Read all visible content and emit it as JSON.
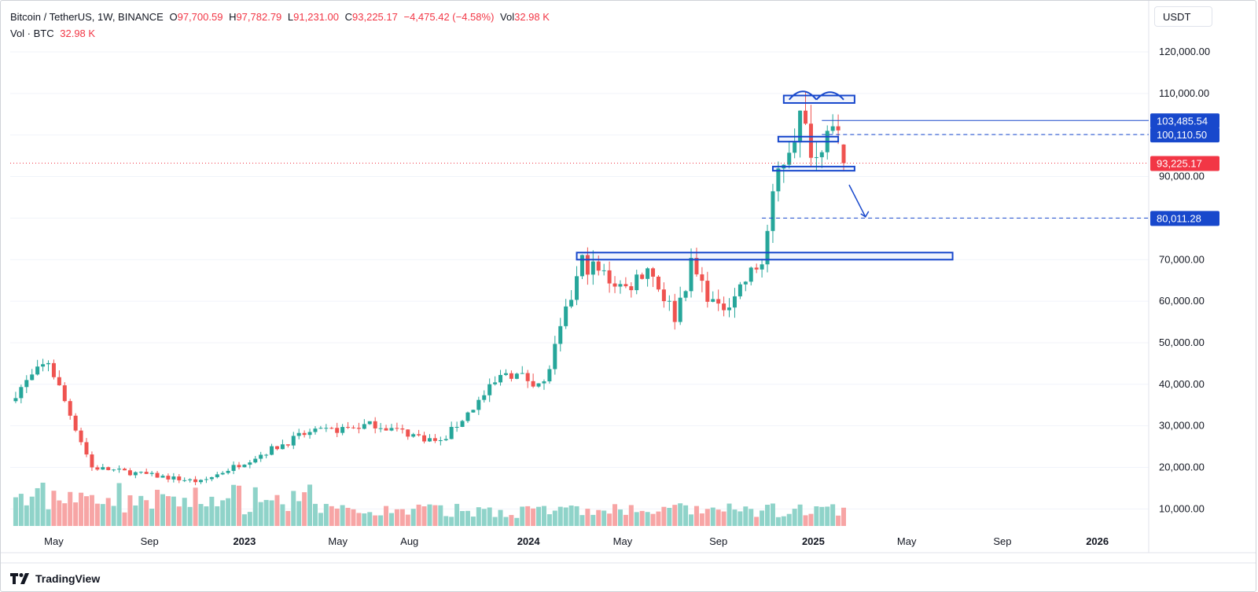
{
  "header": {
    "symbol": "Bitcoin / TetherUS, 1W, BINANCE",
    "open_label": "O",
    "open": "97,700.59",
    "high_label": "H",
    "high": "97,782.79",
    "low_label": "L",
    "low": "91,231.00",
    "close_label": "C",
    "close": "93,225.17",
    "change": "−4,475.42 (−4.58%)",
    "vol_label": "Vol",
    "vol": "32.98 K",
    "vol_row_label": "Vol · BTC",
    "vol_row_value": "32.98 K"
  },
  "price_scale": {
    "unit": "USDT"
  },
  "branding": {
    "name": "TradingView"
  },
  "colors": {
    "up": "#26a69a",
    "down": "#ef5350",
    "up_vol": "#8fd3c9",
    "down_vol": "#f7a5a5",
    "drawing": "#1848cc",
    "last_price": "#f23645"
  },
  "chart_data": {
    "type": "candlestick",
    "timeframe": "1W",
    "y_axis": {
      "range": [
        2500,
        127000
      ],
      "ticks": [
        10000,
        20000,
        30000,
        40000,
        50000,
        60000,
        70000,
        80000,
        90000,
        100000,
        110000,
        120000
      ],
      "tick_labels": [
        "10,000.00",
        "20,000.00",
        "30,000.00",
        "40,000.00",
        "50,000.00",
        "60,000.00",
        "70,000.00",
        "80,000.00",
        "90,000.00",
        "100,000.00",
        "110,000.00",
        "120,000.00"
      ]
    },
    "x_axis": {
      "labels": [
        {
          "text": "May",
          "x": "2022-05-01"
        },
        {
          "text": "Sep",
          "x": "2022-09-01"
        },
        {
          "text": "2023",
          "x": "2023-01-01",
          "bold": true
        },
        {
          "text": "May",
          "x": "2023-05-01"
        },
        {
          "text": "Aug",
          "x": "2023-08-01"
        },
        {
          "text": "2024",
          "x": "2024-01-01",
          "bold": true
        },
        {
          "text": "May",
          "x": "2024-05-01"
        },
        {
          "text": "Sep",
          "x": "2024-09-01"
        },
        {
          "text": "2025",
          "x": "2025-01-01",
          "bold": true
        },
        {
          "text": "May",
          "x": "2025-05-01"
        },
        {
          "text": "Sep",
          "x": "2025-09-01"
        },
        {
          "text": "2026",
          "x": "2026-01-01",
          "bold": true
        }
      ]
    },
    "price_labels": [
      {
        "text": "103,485.54",
        "value": 103485.54,
        "style": "drawing"
      },
      {
        "text": "100,110.50",
        "value": 100110.5,
        "style": "drawing"
      },
      {
        "text": "93,225.17",
        "value": 93225.17,
        "style": "last"
      },
      {
        "text": "80,011.28",
        "value": 80011.28,
        "style": "drawing"
      }
    ],
    "last_price": 93225.17,
    "anchors": [
      {
        "x": "2022-03-13",
        "value": 38000
      },
      {
        "x": "2022-04-24",
        "value": 45500
      },
      {
        "x": "2022-06-19",
        "value": 20000
      },
      {
        "x": "2022-11-06",
        "value": 16500
      },
      {
        "x": "2023-03-19",
        "value": 28000
      },
      {
        "x": "2023-06-18",
        "value": 30400
      },
      {
        "x": "2023-09-10",
        "value": 26000
      },
      {
        "x": "2023-12-03",
        "value": 43000
      },
      {
        "x": "2024-01-21",
        "value": 40000
      },
      {
        "x": "2024-03-10",
        "value": 69500
      },
      {
        "x": "2024-05-05",
        "value": 63000
      },
      {
        "x": "2024-06-02",
        "value": 68500
      },
      {
        "x": "2024-07-07",
        "value": 56500
      },
      {
        "x": "2024-07-28",
        "value": 68500
      },
      {
        "x": "2024-09-01",
        "value": 57500
      },
      {
        "x": "2024-10-27",
        "value": 69500
      },
      {
        "x": "2024-11-17",
        "value": 91000
      },
      {
        "x": "2024-12-15",
        "value": 104000
      },
      {
        "x": "2025-01-05",
        "value": 94500
      },
      {
        "x": "2025-01-19",
        "value": 104000
      },
      {
        "x": "2025-02-02",
        "value": 97700
      },
      {
        "x": "2025-02-09",
        "value": 93225
      }
    ],
    "drawings": {
      "top_rect": {
        "x1": "2024-11-24",
        "x2": "2025-02-23",
        "y1": 107700,
        "y2": 109500
      },
      "arcs": [
        {
          "x1": "2024-12-01",
          "x2": "2025-01-05",
          "base": 108500,
          "peak": 110500
        },
        {
          "x1": "2025-01-05",
          "x2": "2025-02-09",
          "base": 108500,
          "peak": 110300
        }
      ],
      "mid_rect": {
        "x1": "2024-11-17",
        "x2": "2025-02-02",
        "y1": 98400,
        "y2": 99600
      },
      "low_rect": {
        "x1": "2024-11-10",
        "x2": "2025-02-23",
        "y1": 91400,
        "y2": 92400
      },
      "support_rect": {
        "x1": "2024-03-03",
        "x2": "2025-06-29",
        "y1": 70000,
        "y2": 71700
      },
      "resistance_line": {
        "x1": "2025-01-12",
        "value": 103485.54
      },
      "dashed_line_1": {
        "x1": "2025-01-12",
        "value": 100110.5
      },
      "dashed_line_2": {
        "x1": "2024-10-27",
        "value": 80011.28
      },
      "arrow": {
        "x1": "2025-02-16",
        "y1": 88000,
        "x2": "2025-03-09",
        "y2": 80300
      }
    }
  }
}
